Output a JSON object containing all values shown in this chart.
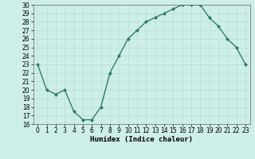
{
  "x": [
    0,
    1,
    2,
    3,
    4,
    5,
    6,
    7,
    8,
    9,
    10,
    11,
    12,
    13,
    14,
    15,
    16,
    17,
    18,
    19,
    20,
    21,
    22,
    23
  ],
  "y": [
    23,
    20,
    19.5,
    20,
    17.5,
    16.5,
    16.5,
    18,
    22,
    24,
    26,
    27,
    28,
    28.5,
    29,
    29.5,
    30,
    30,
    30,
    28.5,
    27.5,
    26,
    25,
    23
  ],
  "line_color": "#2e7d6e",
  "marker_color": "#2e7d6e",
  "bg_color": "#ceeee8",
  "grid_color": "#b8ddd8",
  "xlabel": "Humidex (Indice chaleur)",
  "ylim": [
    16,
    30
  ],
  "xlim": [
    -0.5,
    23.5
  ],
  "yticks": [
    16,
    17,
    18,
    19,
    20,
    21,
    22,
    23,
    24,
    25,
    26,
    27,
    28,
    29,
    30
  ],
  "xticks": [
    0,
    1,
    2,
    3,
    4,
    5,
    6,
    7,
    8,
    9,
    10,
    11,
    12,
    13,
    14,
    15,
    16,
    17,
    18,
    19,
    20,
    21,
    22,
    23
  ],
  "tick_fontsize": 5.5,
  "xlabel_fontsize": 6.5,
  "linewidth": 1.0,
  "markersize": 2.0
}
